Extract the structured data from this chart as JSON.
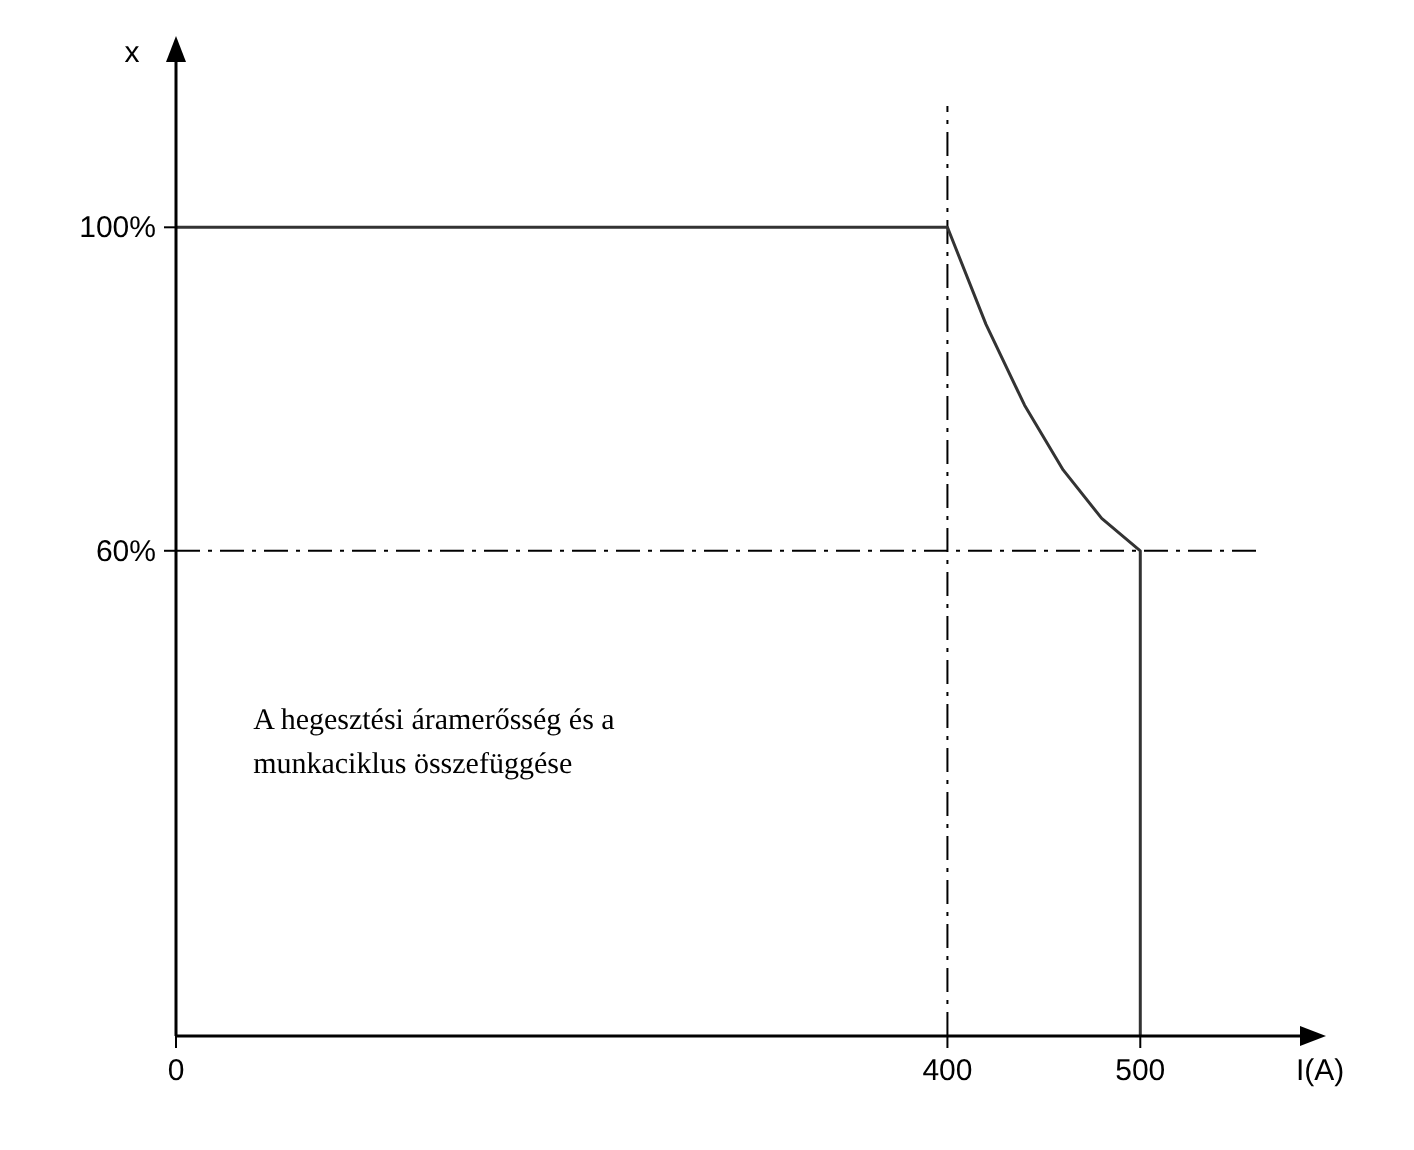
{
  "chart_data": {
    "type": "line",
    "xlabel": "I(A)",
    "ylabel": "x",
    "x": [
      0,
      400,
      420,
      440,
      460,
      480,
      500,
      500
    ],
    "series": [
      {
        "color": "#333333",
        "values": [
          100,
          100,
          88,
          78,
          70,
          64,
          60,
          0
        ]
      }
    ],
    "xlim": [
      0,
      560
    ],
    "ylim": [
      0,
      115
    ],
    "xticks": [
      0,
      400,
      500
    ],
    "yticks": [
      {
        "value": 100,
        "label": "100%"
      },
      {
        "value": 60,
        "label": "60%"
      }
    ],
    "ref_lines": [
      {
        "axis": "x",
        "value": 400,
        "color": "#000000",
        "line_style": "dashed"
      },
      {
        "axis": "y",
        "value": 60,
        "color": "#000000",
        "line_style": "dashed"
      }
    ],
    "annotations": [
      "A hegesztési áramerősség és a munkaciklus összefüggése"
    ],
    "grid": false,
    "line_style": "solid"
  }
}
